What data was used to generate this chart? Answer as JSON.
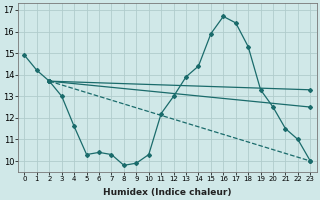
{
  "xlabel": "Humidex (Indice chaleur)",
  "background_color": "#d0e8e8",
  "grid_color": "#b0cccc",
  "line_color": "#1a6b6b",
  "xlim": [
    -0.5,
    23.5
  ],
  "ylim": [
    9.5,
    17.3
  ],
  "yticks": [
    10,
    11,
    12,
    13,
    14,
    15,
    16,
    17
  ],
  "xticks": [
    0,
    1,
    2,
    3,
    4,
    5,
    6,
    7,
    8,
    9,
    10,
    11,
    12,
    13,
    14,
    15,
    16,
    17,
    18,
    19,
    20,
    21,
    22,
    23
  ],
  "main_x": [
    0,
    1,
    2,
    3,
    4,
    5,
    6,
    7,
    8,
    9,
    10,
    11,
    12,
    13,
    14,
    15,
    16,
    17,
    18,
    19,
    20,
    21,
    22,
    23
  ],
  "main_y": [
    14.9,
    14.2,
    13.7,
    13.0,
    11.6,
    10.3,
    10.4,
    10.3,
    9.8,
    9.9,
    10.3,
    12.2,
    13.0,
    13.9,
    14.4,
    15.9,
    16.7,
    16.4,
    15.3,
    13.3,
    12.5,
    11.5,
    11.0,
    10.0
  ],
  "line1_x": [
    2,
    23
  ],
  "line1_y": [
    13.7,
    13.3
  ],
  "line2_x": [
    2,
    23
  ],
  "line2_y": [
    13.7,
    12.5
  ],
  "line3_x": [
    2,
    23
  ],
  "line3_y": [
    13.7,
    10.0
  ],
  "line3_style": "--"
}
